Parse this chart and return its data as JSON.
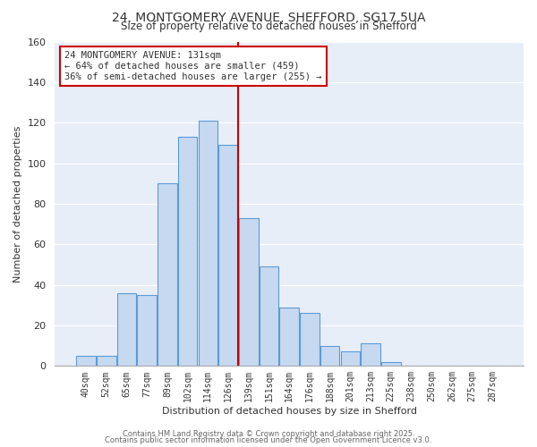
{
  "title": "24, MONTGOMERY AVENUE, SHEFFORD, SG17 5UA",
  "subtitle": "Size of property relative to detached houses in Shefford",
  "xlabel": "Distribution of detached houses by size in Shefford",
  "ylabel": "Number of detached properties",
  "bar_labels": [
    "40sqm",
    "52sqm",
    "65sqm",
    "77sqm",
    "89sqm",
    "102sqm",
    "114sqm",
    "126sqm",
    "139sqm",
    "151sqm",
    "164sqm",
    "176sqm",
    "188sqm",
    "201sqm",
    "213sqm",
    "225sqm",
    "238sqm",
    "250sqm",
    "262sqm",
    "275sqm",
    "287sqm"
  ],
  "bar_heights": [
    5,
    5,
    36,
    35,
    90,
    113,
    121,
    109,
    73,
    49,
    29,
    26,
    10,
    7,
    11,
    2,
    0,
    0,
    0,
    0,
    0
  ],
  "bar_color": "#c6d9f0",
  "bar_edge_color": "#5b9bd5",
  "ylim": [
    0,
    160
  ],
  "vline_bar_idx": 7,
  "vline_color": "#cc0000",
  "annotation_title": "24 MONTGOMERY AVENUE: 131sqm",
  "annotation_line1": "← 64% of detached houses are smaller (459)",
  "annotation_line2": "36% of semi-detached houses are larger (255) →",
  "annotation_box_color": "#ffffff",
  "annotation_box_edge": "#cc0000",
  "footer1": "Contains HM Land Registry data © Crown copyright and database right 2025.",
  "footer2": "Contains public sector information licensed under the Open Government Licence v3.0.",
  "background_color": "#ffffff",
  "ax_background_color": "#e8eef8",
  "grid_color": "#ffffff"
}
